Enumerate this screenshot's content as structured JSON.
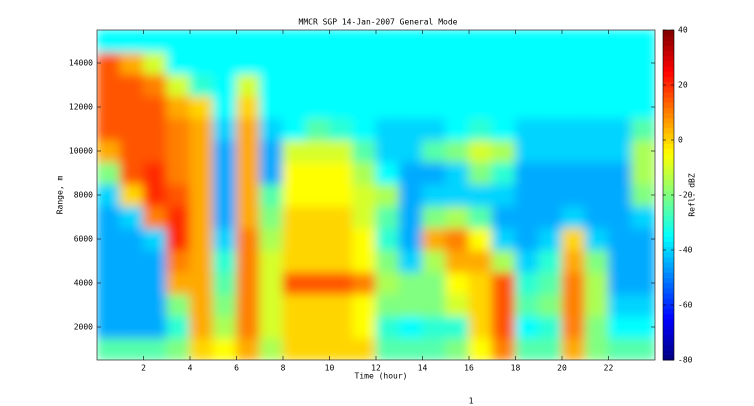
{
  "chart_data": {
    "type": "heatmap",
    "title": "MMCR SGP 14-Jan-2007 General Mode",
    "x_label": "Time (hour)",
    "y_label": "Range, m",
    "colorbar_label": "Refl. dBZ",
    "page_number": "1",
    "x": [
      0.5,
      1.5,
      2.5,
      3.5,
      4.5,
      5.5,
      6.5,
      7.5,
      8.5,
      9.5,
      10.5,
      11.5,
      12.5,
      13.5,
      14.5,
      15.5,
      16.5,
      17.5,
      18.5,
      19.5,
      20.5,
      21.5,
      22.5,
      23.5
    ],
    "y": [
      1000,
      2000,
      3000,
      4000,
      5000,
      6000,
      7000,
      8000,
      9000,
      10000,
      11000,
      12000,
      13000,
      14000,
      15000
    ],
    "z": [
      [
        -25,
        -45,
        -45,
        -45,
        -45,
        -45,
        -45,
        -40,
        -20,
        5,
        15,
        15,
        15,
        15,
        -35
      ],
      [
        -25,
        -45,
        -45,
        -45,
        -45,
        -45,
        -40,
        0,
        15,
        15,
        15,
        15,
        15,
        5,
        -35
      ],
      [
        -25,
        -45,
        -45,
        -45,
        -45,
        -40,
        10,
        20,
        20,
        15,
        15,
        15,
        10,
        -10,
        -35
      ],
      [
        -20,
        -30,
        -20,
        5,
        10,
        20,
        20,
        15,
        10,
        10,
        10,
        5,
        -10,
        -35,
        -35
      ],
      [
        0,
        5,
        5,
        5,
        5,
        5,
        5,
        5,
        5,
        5,
        5,
        0,
        -30,
        -35,
        -35
      ],
      [
        -5,
        -15,
        -20,
        -25,
        -30,
        -40,
        -45,
        -45,
        -45,
        -45,
        -40,
        -35,
        -35,
        -35,
        -35
      ],
      [
        5,
        10,
        10,
        10,
        10,
        10,
        5,
        5,
        5,
        5,
        5,
        0,
        -10,
        -35,
        -35
      ],
      [
        -15,
        -10,
        -10,
        -10,
        -10,
        -15,
        -20,
        -25,
        -45,
        -45,
        -40,
        -35,
        -35,
        -35,
        -35
      ],
      [
        0,
        0,
        0,
        15,
        0,
        0,
        0,
        -5,
        -5,
        -10,
        -35,
        -35,
        -35,
        -35,
        -35
      ],
      [
        0,
        0,
        0,
        15,
        0,
        0,
        0,
        -5,
        -5,
        -10,
        -25,
        -35,
        -35,
        -35,
        -35
      ],
      [
        0,
        0,
        0,
        15,
        0,
        0,
        0,
        -5,
        -5,
        -10,
        -30,
        -35,
        -35,
        -35,
        -35
      ],
      [
        0,
        -5,
        -5,
        10,
        -5,
        -5,
        -10,
        -10,
        -15,
        -25,
        -35,
        -35,
        -35,
        -35,
        -35
      ],
      [
        -25,
        -30,
        -20,
        -15,
        -20,
        -30,
        -25,
        -15,
        -35,
        -40,
        -40,
        -35,
        -35,
        -35,
        -35
      ],
      [
        -25,
        -35,
        -20,
        -20,
        -40,
        -45,
        -45,
        -45,
        -45,
        -40,
        -40,
        -35,
        -35,
        -35,
        -35
      ],
      [
        -25,
        -30,
        -20,
        -20,
        -15,
        5,
        -20,
        -40,
        -45,
        -25,
        -40,
        -35,
        -35,
        -35,
        -35
      ],
      [
        -20,
        -30,
        -10,
        -5,
        5,
        10,
        -15,
        -40,
        -40,
        -20,
        -35,
        -35,
        -35,
        -35,
        -35
      ],
      [
        -5,
        0,
        0,
        0,
        5,
        -5,
        -25,
        -40,
        -20,
        -10,
        -30,
        -35,
        -35,
        -35,
        -35
      ],
      [
        10,
        15,
        15,
        15,
        -15,
        -40,
        -45,
        -40,
        -30,
        -15,
        -35,
        -35,
        -35,
        -35,
        -35
      ],
      [
        -25,
        -35,
        -25,
        -30,
        -40,
        -45,
        -45,
        -45,
        -45,
        -40,
        -40,
        -35,
        -35,
        -35,
        -35
      ],
      [
        -25,
        -30,
        -20,
        -25,
        -30,
        -40,
        -45,
        -45,
        -45,
        -40,
        -40,
        -35,
        -35,
        -35,
        -35
      ],
      [
        5,
        10,
        10,
        10,
        5,
        0,
        -40,
        -45,
        -45,
        -40,
        -40,
        -35,
        -35,
        -35,
        -35
      ],
      [
        -20,
        -20,
        -15,
        -15,
        -20,
        -40,
        -45,
        -45,
        -45,
        -40,
        -40,
        -35,
        -35,
        -35,
        -35
      ],
      [
        -25,
        -35,
        -40,
        -45,
        -45,
        -45,
        -45,
        -45,
        -45,
        -40,
        -40,
        -35,
        -35,
        -35,
        -35
      ],
      [
        -25,
        -35,
        -40,
        -45,
        -45,
        -45,
        -40,
        -20,
        -15,
        -15,
        -25,
        -35,
        -35,
        -35,
        -35
      ]
    ],
    "xlim": [
      0,
      24
    ],
    "xticks": [
      2,
      4,
      6,
      8,
      10,
      12,
      14,
      16,
      18,
      20,
      22
    ],
    "ylim": [
      500,
      15500
    ],
    "yticks": [
      2000,
      4000,
      6000,
      8000,
      10000,
      12000,
      14000
    ],
    "clim": [
      -80,
      40
    ],
    "cticks": [
      -80,
      -60,
      -40,
      -20,
      0,
      20,
      40
    ],
    "colormap": "jet"
  }
}
